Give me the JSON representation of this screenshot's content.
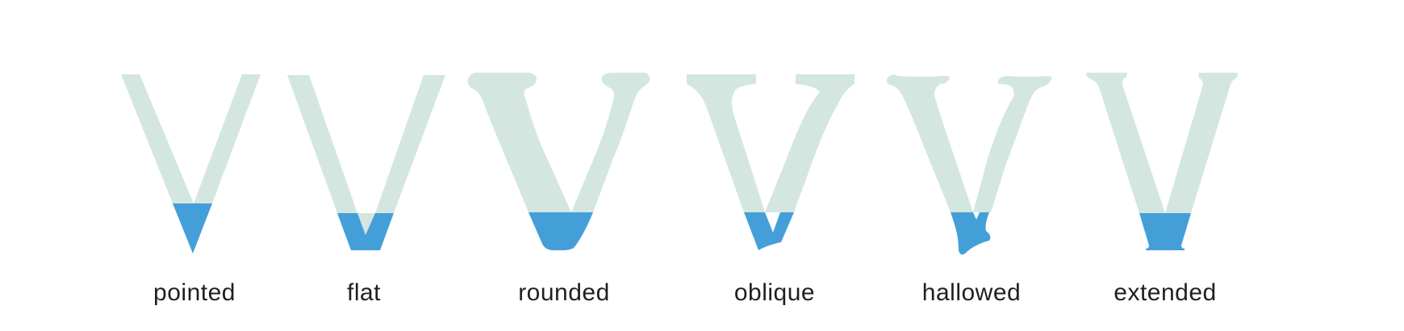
{
  "colors": {
    "glyph_body": "#d4e6e0",
    "apex_highlight": "#449fd9",
    "caption_text": "#231f20",
    "background": "#ffffff"
  },
  "glyphs": [
    {
      "id": "pointed",
      "label": "pointed"
    },
    {
      "id": "flat",
      "label": "flat"
    },
    {
      "id": "rounded",
      "label": "rounded"
    },
    {
      "id": "oblique",
      "label": "oblique"
    },
    {
      "id": "hallowed",
      "label": "hallowed"
    },
    {
      "id": "extended",
      "label": "extended"
    }
  ]
}
